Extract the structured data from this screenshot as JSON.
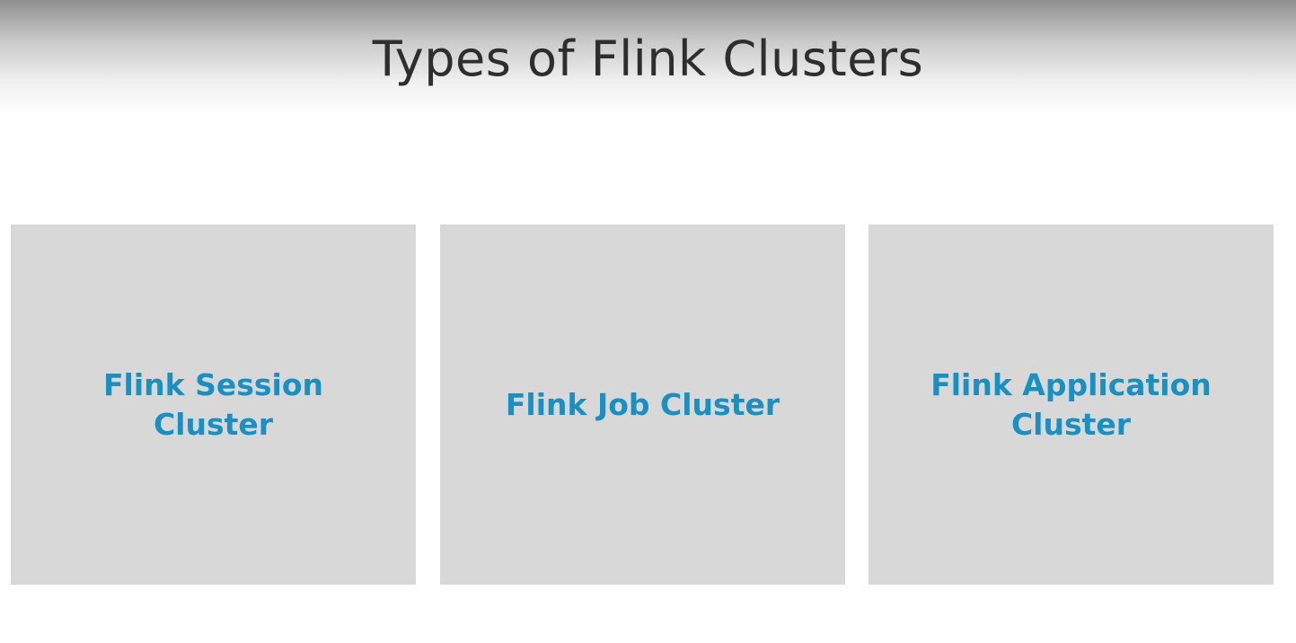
{
  "slide": {
    "title": "Types of Flink Clusters",
    "cards": [
      {
        "label": "Flink Session Cluster"
      },
      {
        "label": "Flink Job Cluster"
      },
      {
        "label": "Flink Application Cluster"
      }
    ]
  },
  "colors": {
    "title_text": "#2e2e2e",
    "card_background": "#d8d8d8",
    "card_label": "#1a8fc2",
    "page_background": "#ffffff"
  }
}
